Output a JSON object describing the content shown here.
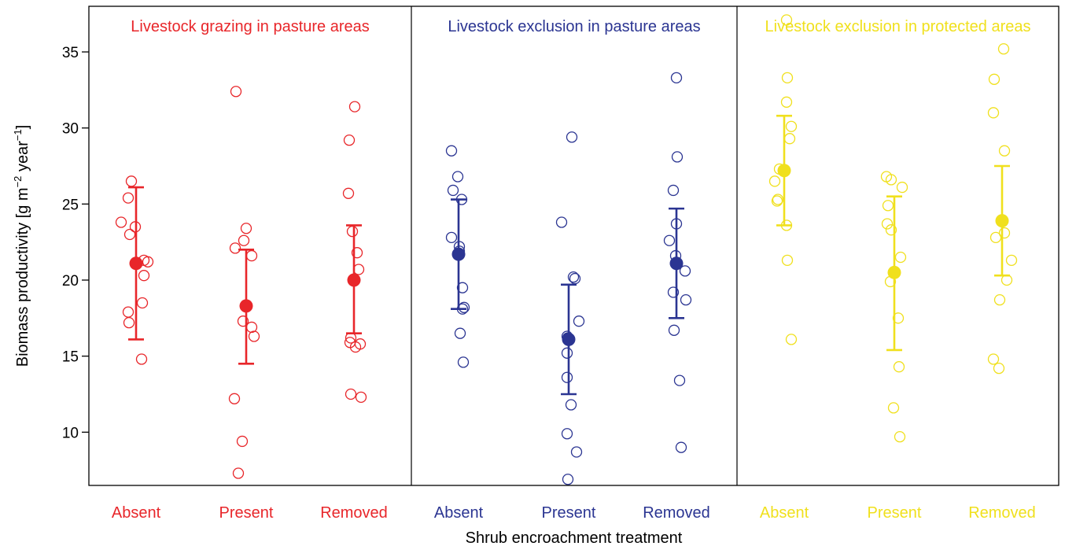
{
  "chart_data": {
    "type": "scatter",
    "xlabel": "Shrub encroachment treatment",
    "ylabel": {
      "main": "Biomass productivity [g m",
      "sup1": "−2",
      "mid": " year",
      "sup2": "−1",
      "end": "]"
    },
    "ylim": [
      6.5,
      38
    ],
    "yticks": [
      10,
      15,
      20,
      25,
      30,
      35
    ],
    "grid": false,
    "legend": "none",
    "panels": [
      {
        "title": "Livestock grazing in pasture areas",
        "color": "#e8262a",
        "groups": [
          {
            "category": "Absent",
            "mean": 21.1,
            "ci_low": 16.1,
            "ci_high": 26.1,
            "points": [
              {
                "x": -0.06,
                "y": 26.5
              },
              {
                "x": -0.1,
                "y": 25.4
              },
              {
                "x": -0.01,
                "y": 23.5
              },
              {
                "x": -0.19,
                "y": 23.8
              },
              {
                "x": -0.08,
                "y": 23.0
              },
              {
                "x": 0.1,
                "y": 21.3
              },
              {
                "x": 0.15,
                "y": 21.2
              },
              {
                "x": 0.1,
                "y": 20.3
              },
              {
                "x": 0.08,
                "y": 18.5
              },
              {
                "x": -0.1,
                "y": 17.9
              },
              {
                "x": -0.09,
                "y": 17.2
              },
              {
                "x": 0.07,
                "y": 14.8
              }
            ]
          },
          {
            "category": "Present",
            "mean": 18.3,
            "ci_low": 14.5,
            "ci_high": 22.0,
            "points": [
              {
                "x": -0.13,
                "y": 32.4
              },
              {
                "x": 0.0,
                "y": 23.4
              },
              {
                "x": -0.03,
                "y": 22.6
              },
              {
                "x": -0.14,
                "y": 22.1
              },
              {
                "x": 0.07,
                "y": 21.6
              },
              {
                "x": -0.04,
                "y": 17.3
              },
              {
                "x": 0.07,
                "y": 16.9
              },
              {
                "x": 0.1,
                "y": 16.3
              },
              {
                "x": -0.15,
                "y": 12.2
              },
              {
                "x": -0.05,
                "y": 9.4
              },
              {
                "x": -0.1,
                "y": 7.3
              }
            ]
          },
          {
            "category": "Removed",
            "mean": 20.0,
            "ci_low": 16.5,
            "ci_high": 23.6,
            "points": [
              {
                "x": 0.01,
                "y": 31.4
              },
              {
                "x": -0.06,
                "y": 29.2
              },
              {
                "x": -0.07,
                "y": 25.7
              },
              {
                "x": -0.02,
                "y": 23.2
              },
              {
                "x": 0.04,
                "y": 21.8
              },
              {
                "x": 0.06,
                "y": 20.7
              },
              {
                "x": -0.04,
                "y": 16.2
              },
              {
                "x": -0.05,
                "y": 15.9
              },
              {
                "x": 0.08,
                "y": 15.8
              },
              {
                "x": 0.02,
                "y": 15.6
              },
              {
                "x": -0.04,
                "y": 12.5
              },
              {
                "x": 0.09,
                "y": 12.3
              }
            ]
          }
        ]
      },
      {
        "title": "Livestock exclusion in pasture areas",
        "color": "#2b3592",
        "groups": [
          {
            "category": "Absent",
            "mean": 21.7,
            "ci_low": 18.1,
            "ci_high": 25.3,
            "points": [
              {
                "x": -0.09,
                "y": 28.5
              },
              {
                "x": -0.01,
                "y": 26.8
              },
              {
                "x": -0.07,
                "y": 25.9
              },
              {
                "x": 0.04,
                "y": 25.3
              },
              {
                "x": -0.09,
                "y": 22.8
              },
              {
                "x": 0.01,
                "y": 22.2
              },
              {
                "x": 0.01,
                "y": 21.9
              },
              {
                "x": 0.05,
                "y": 19.5
              },
              {
                "x": 0.07,
                "y": 18.2
              },
              {
                "x": 0.05,
                "y": 18.1
              },
              {
                "x": 0.02,
                "y": 16.5
              },
              {
                "x": 0.06,
                "y": 14.6
              }
            ]
          },
          {
            "category": "Present",
            "mean": 16.1,
            "ci_low": 12.5,
            "ci_high": 19.7,
            "points": [
              {
                "x": 0.04,
                "y": 29.4
              },
              {
                "x": -0.09,
                "y": 23.8
              },
              {
                "x": 0.06,
                "y": 20.2
              },
              {
                "x": 0.08,
                "y": 20.1
              },
              {
                "x": 0.13,
                "y": 17.3
              },
              {
                "x": -0.02,
                "y": 16.3
              },
              {
                "x": -0.01,
                "y": 16.2
              },
              {
                "x": -0.02,
                "y": 15.2
              },
              {
                "x": -0.02,
                "y": 13.6
              },
              {
                "x": 0.03,
                "y": 11.8
              },
              {
                "x": -0.02,
                "y": 9.9
              },
              {
                "x": 0.1,
                "y": 8.7
              },
              {
                "x": -0.01,
                "y": 6.9
              }
            ]
          },
          {
            "category": "Removed",
            "mean": 21.1,
            "ci_low": 17.5,
            "ci_high": 24.7,
            "points": [
              {
                "x": 0.0,
                "y": 33.3
              },
              {
                "x": 0.01,
                "y": 28.1
              },
              {
                "x": -0.04,
                "y": 25.9
              },
              {
                "x": 0.0,
                "y": 23.7
              },
              {
                "x": -0.09,
                "y": 22.6
              },
              {
                "x": -0.01,
                "y": 21.6
              },
              {
                "x": 0.11,
                "y": 20.6
              },
              {
                "x": -0.04,
                "y": 19.2
              },
              {
                "x": 0.12,
                "y": 18.7
              },
              {
                "x": -0.03,
                "y": 16.7
              },
              {
                "x": 0.04,
                "y": 13.4
              },
              {
                "x": 0.06,
                "y": 9.0
              }
            ]
          }
        ]
      },
      {
        "title": "Livestock exclusion in protected areas",
        "color": "#f0e01d",
        "groups": [
          {
            "category": "Absent",
            "mean": 27.2,
            "ci_low": 23.6,
            "ci_high": 30.8,
            "points": [
              {
                "x": 0.03,
                "y": 37.1
              },
              {
                "x": 0.04,
                "y": 33.3
              },
              {
                "x": 0.03,
                "y": 31.7
              },
              {
                "x": 0.09,
                "y": 30.1
              },
              {
                "x": 0.07,
                "y": 29.3
              },
              {
                "x": -0.06,
                "y": 27.3
              },
              {
                "x": -0.12,
                "y": 26.5
              },
              {
                "x": -0.08,
                "y": 25.3
              },
              {
                "x": -0.09,
                "y": 25.2
              },
              {
                "x": 0.03,
                "y": 23.6
              },
              {
                "x": 0.04,
                "y": 21.3
              },
              {
                "x": 0.09,
                "y": 16.1
              }
            ]
          },
          {
            "category": "Present",
            "mean": 20.5,
            "ci_low": 15.4,
            "ci_high": 25.5,
            "points": [
              {
                "x": -0.1,
                "y": 26.8
              },
              {
                "x": -0.04,
                "y": 26.6
              },
              {
                "x": 0.1,
                "y": 26.1
              },
              {
                "x": -0.08,
                "y": 24.9
              },
              {
                "x": -0.09,
                "y": 23.7
              },
              {
                "x": -0.04,
                "y": 23.3
              },
              {
                "x": 0.08,
                "y": 21.5
              },
              {
                "x": -0.05,
                "y": 19.9
              },
              {
                "x": 0.05,
                "y": 17.5
              },
              {
                "x": 0.06,
                "y": 14.3
              },
              {
                "x": -0.01,
                "y": 11.6
              },
              {
                "x": 0.07,
                "y": 9.7
              }
            ]
          },
          {
            "category": "Removed",
            "mean": 23.9,
            "ci_low": 20.3,
            "ci_high": 27.5,
            "points": [
              {
                "x": 0.02,
                "y": 35.2
              },
              {
                "x": -0.1,
                "y": 33.2
              },
              {
                "x": -0.11,
                "y": 31.0
              },
              {
                "x": 0.03,
                "y": 28.5
              },
              {
                "x": -0.08,
                "y": 22.8
              },
              {
                "x": 0.03,
                "y": 23.1
              },
              {
                "x": 0.12,
                "y": 21.3
              },
              {
                "x": 0.06,
                "y": 20.0
              },
              {
                "x": -0.03,
                "y": 18.7
              },
              {
                "x": -0.11,
                "y": 14.8
              },
              {
                "x": -0.04,
                "y": 14.2
              }
            ]
          }
        ]
      }
    ]
  }
}
